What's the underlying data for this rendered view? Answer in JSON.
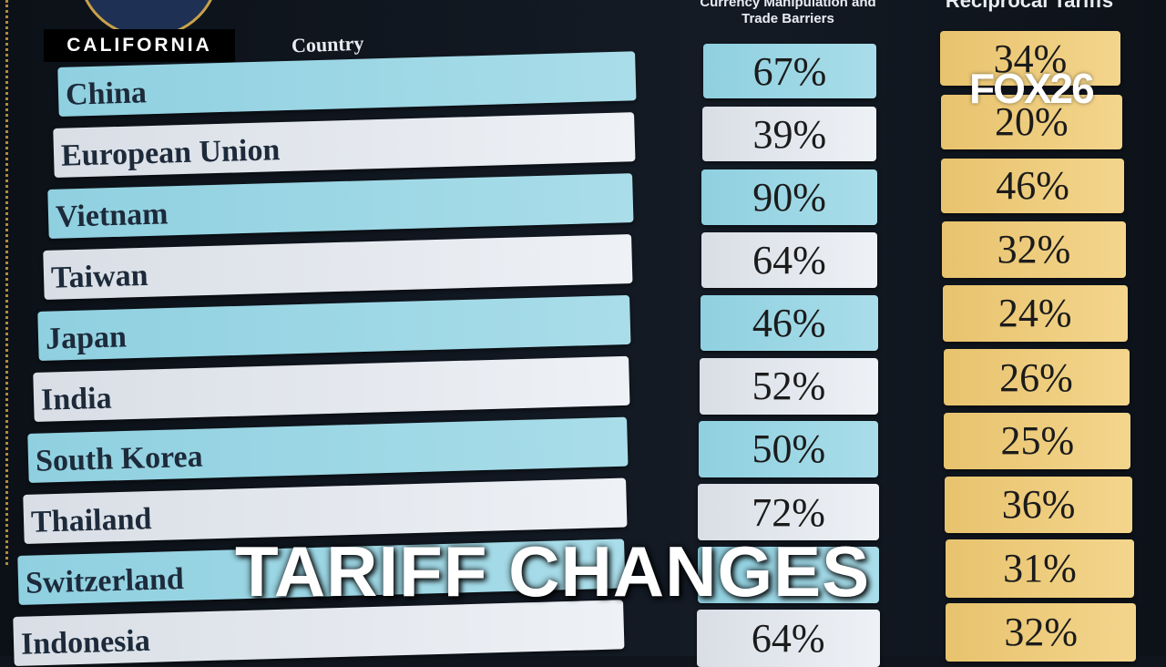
{
  "header": {
    "station_label": "CALIFORNIA",
    "logo": "FOX26",
    "country_heading": "Country",
    "column_1_heading": "Currency Manipulation and Trade Barriers",
    "column_2_heading": "Reciprocal Tariffs"
  },
  "table": {
    "rows": [
      {
        "country": "China",
        "currency": "67%",
        "reciprocal": "34%"
      },
      {
        "country": "European Union",
        "currency": "39%",
        "reciprocal": "20%"
      },
      {
        "country": "Vietnam",
        "currency": "90%",
        "reciprocal": "46%"
      },
      {
        "country": "Taiwan",
        "currency": "64%",
        "reciprocal": "32%"
      },
      {
        "country": "Japan",
        "currency": "46%",
        "reciprocal": "24%"
      },
      {
        "country": "India",
        "currency": "52%",
        "reciprocal": "26%"
      },
      {
        "country": "South Korea",
        "currency": "50%",
        "reciprocal": "25%"
      },
      {
        "country": "Thailand",
        "currency": "72%",
        "reciprocal": "36%"
      },
      {
        "country": "Switzerland",
        "reciprocal": "31%"
      },
      {
        "country": "Indonesia",
        "currency": "64%",
        "reciprocal": "32%"
      }
    ]
  },
  "overlay": {
    "headline": "TARIFF CHANGES"
  }
}
